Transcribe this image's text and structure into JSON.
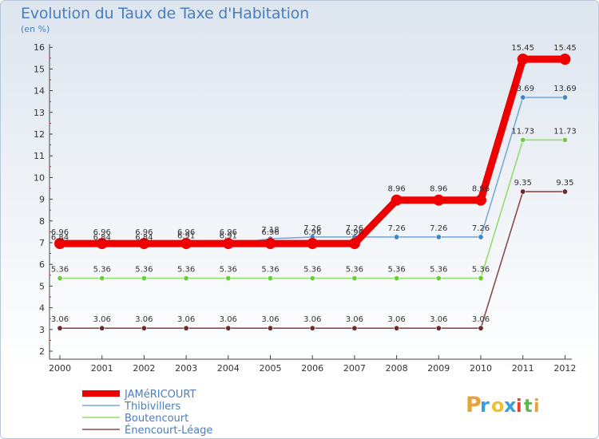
{
  "header": {
    "title": "Evolution du Taux de Taxe d'Habitation",
    "subtitle": "(en %)"
  },
  "logo": {
    "text": "Proxiti",
    "letters": [
      "P",
      "r",
      "o",
      "x",
      "i",
      "t",
      "i"
    ],
    "colors": [
      "#e8a23a",
      "#3aa0d8",
      "#f0c030",
      "#3aa0d8",
      "#e8402e",
      "#58b848",
      "#e8a23a"
    ]
  },
  "chart_data": {
    "type": "line",
    "title": "Evolution du Taux de Taxe d'Habitation",
    "ylabel": "(en %)",
    "x": [
      "2000",
      "2001",
      "2002",
      "2003",
      "2004",
      "2005",
      "2006",
      "2007",
      "2008",
      "2009",
      "2010",
      "2011",
      "2012"
    ],
    "yticks": [
      "2",
      "3",
      "4",
      "5",
      "6",
      "7",
      "8",
      "9",
      "10",
      "11",
      "12",
      "13",
      "14",
      "15",
      "16"
    ],
    "ylim": [
      2,
      16
    ],
    "grid": false,
    "legend_position": "bottom-left",
    "series": [
      {
        "name": "JAMéRICOURT",
        "color": "#ee0000",
        "width": 9,
        "marker": 7,
        "values": [
          6.96,
          6.96,
          6.96,
          6.96,
          6.96,
          6.96,
          6.96,
          6.96,
          8.96,
          8.96,
          8.96,
          15.45,
          15.45
        ],
        "labels": [
          "6.96",
          "6.96",
          "6.96",
          "6.96",
          "6.96",
          "6.96",
          "6.96",
          "6.96",
          "8.96",
          "8.96",
          "8.96",
          "15.45",
          "15.45"
        ]
      },
      {
        "name": "Thibivillers",
        "color": "#7aa9d6",
        "width": 1.6,
        "marker": 3.2,
        "markerFill": "#3f86c6",
        "values": [
          6.84,
          6.84,
          6.84,
          6.91,
          6.91,
          7.18,
          7.26,
          7.26,
          7.26,
          7.26,
          7.26,
          13.69,
          13.69
        ],
        "labels": [
          "6.84",
          "6.84",
          "6.84",
          "6.91",
          "6.91",
          "7.18",
          "7.26",
          "7.26",
          "7.26",
          "7.26",
          "7.26",
          "13.69",
          "13.69"
        ]
      },
      {
        "name": "Boutencourt",
        "color": "#93dd6c",
        "width": 1.6,
        "marker": 3.2,
        "markerFill": "#6ccc3c",
        "values": [
          5.36,
          5.36,
          5.36,
          5.36,
          5.36,
          5.36,
          5.36,
          5.36,
          5.36,
          5.36,
          5.36,
          11.73,
          11.73
        ],
        "labels": [
          "5.36",
          "5.36",
          "5.36",
          "5.36",
          "5.36",
          "5.36",
          "5.36",
          "5.36",
          "5.36",
          "5.36",
          "5.36",
          "11.73",
          "11.73"
        ]
      },
      {
        "name": "Énencourt-Léage",
        "color": "#8a4a4a",
        "width": 1.6,
        "marker": 3.2,
        "markerFill": "#6e2a2a",
        "values": [
          3.06,
          3.06,
          3.06,
          3.06,
          3.06,
          3.06,
          3.06,
          3.06,
          3.06,
          3.06,
          3.06,
          9.35,
          9.35
        ],
        "labels": [
          "3.06",
          "3.06",
          "3.06",
          "3.06",
          "3.06",
          "3.06",
          "3.06",
          "3.06",
          "3.06",
          "3.06",
          "3.06",
          "9.35",
          "9.35"
        ]
      }
    ]
  }
}
